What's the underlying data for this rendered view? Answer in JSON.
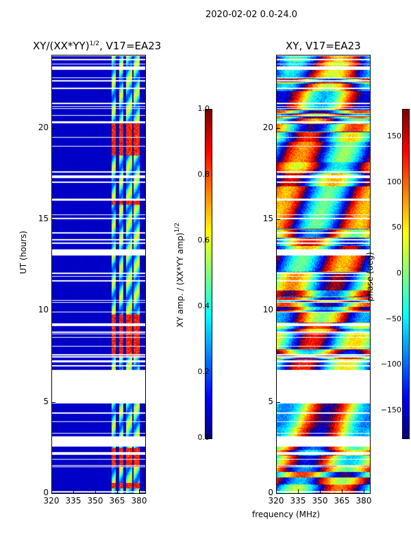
{
  "suptitle": "2020-02-02 0.0-24.0",
  "chart_data": [
    {
      "type": "heatmap",
      "title_main": "XY/(XX*YY)",
      "title_sup": "1/2",
      "title_tail": ", V17=EA23",
      "xlabel": "frequency (MHz)",
      "ylabel": "UT (hours)",
      "xlim": [
        320,
        384
      ],
      "ylim": [
        0,
        24
      ],
      "xticks": [
        "320",
        "335",
        "350",
        "365",
        "380"
      ],
      "xtick_values": [
        320,
        335,
        350,
        365,
        380
      ],
      "yticks": [
        "0",
        "5",
        "10",
        "15",
        "20"
      ],
      "ytick_values": [
        0,
        5,
        10,
        15,
        20
      ],
      "colorbar": {
        "label_main": "XY amp. / (XX*YY amp)",
        "label_sup": "1/2",
        "range": [
          0,
          1
        ],
        "ticks": [
          "0.0",
          "0.2",
          "0.4",
          "0.6",
          "0.8",
          "1.0"
        ],
        "tick_values": [
          0,
          0.2,
          0.4,
          0.6,
          0.8,
          1.0
        ]
      },
      "active_bands_mhz": [
        [
          361,
          364
        ],
        [
          366,
          369
        ],
        [
          371,
          375
        ],
        [
          376,
          380
        ]
      ],
      "high_amplitude_ut": [
        [
          0.3,
          0.6
        ],
        [
          1.5,
          2.5
        ],
        [
          7.5,
          9.8
        ],
        [
          15.8,
          16.1
        ],
        [
          18.5,
          20.3
        ]
      ]
    },
    {
      "type": "heatmap",
      "title": "XY, V17=EA23",
      "xlabel": "frequency (MHz)",
      "xlim": [
        320,
        384
      ],
      "ylim": [
        0,
        24
      ],
      "xticks": [
        "320",
        "335",
        "350",
        "365",
        "380"
      ],
      "xtick_values": [
        320,
        335,
        350,
        365,
        380
      ],
      "yticks": [
        "0",
        "5",
        "10",
        "15",
        "20"
      ],
      "ytick_values": [
        0,
        5,
        10,
        15,
        20
      ],
      "colorbar": {
        "label": "phase (deg)",
        "range": [
          -180,
          180
        ],
        "ticks": [
          "−150",
          "−100",
          "−50",
          "0",
          "50",
          "100",
          "150"
        ],
        "tick_values": [
          -150,
          -100,
          -50,
          0,
          50,
          100,
          150
        ]
      }
    }
  ],
  "blank_ut_intervals": [
    [
      2.6,
      3.1
    ],
    [
      5.0,
      6.75
    ],
    [
      13.05,
      13.35
    ],
    [
      17.3,
      17.4
    ],
    [
      23.2,
      23.35
    ]
  ]
}
